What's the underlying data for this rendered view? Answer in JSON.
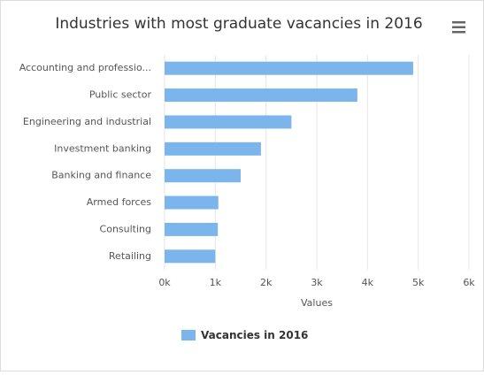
{
  "chart_data": {
    "type": "bar",
    "orientation": "horizontal",
    "title": "Industries with most graduate vacancies in 2016",
    "categories": [
      "Accounting and professio...",
      "Public sector",
      "Engineering and industrial",
      "Investment banking",
      "Banking and finance",
      "Armed forces",
      "Consulting",
      "Retailing"
    ],
    "series": [
      {
        "name": "Vacancies in 2016",
        "color": "#7cb5ec",
        "values": [
          4900,
          3800,
          2500,
          1900,
          1500,
          1060,
          1050,
          1000
        ]
      }
    ],
    "xlabel": "Values",
    "xlim": [
      0,
      6000
    ],
    "xticks": [
      {
        "value": 0,
        "label": "0k"
      },
      {
        "value": 1000,
        "label": "1k"
      },
      {
        "value": 2000,
        "label": "2k"
      },
      {
        "value": 3000,
        "label": "3k"
      },
      {
        "value": 4000,
        "label": "4k"
      },
      {
        "value": 5000,
        "label": "5k"
      },
      {
        "value": 6000,
        "label": "6k"
      }
    ],
    "grid": true
  }
}
